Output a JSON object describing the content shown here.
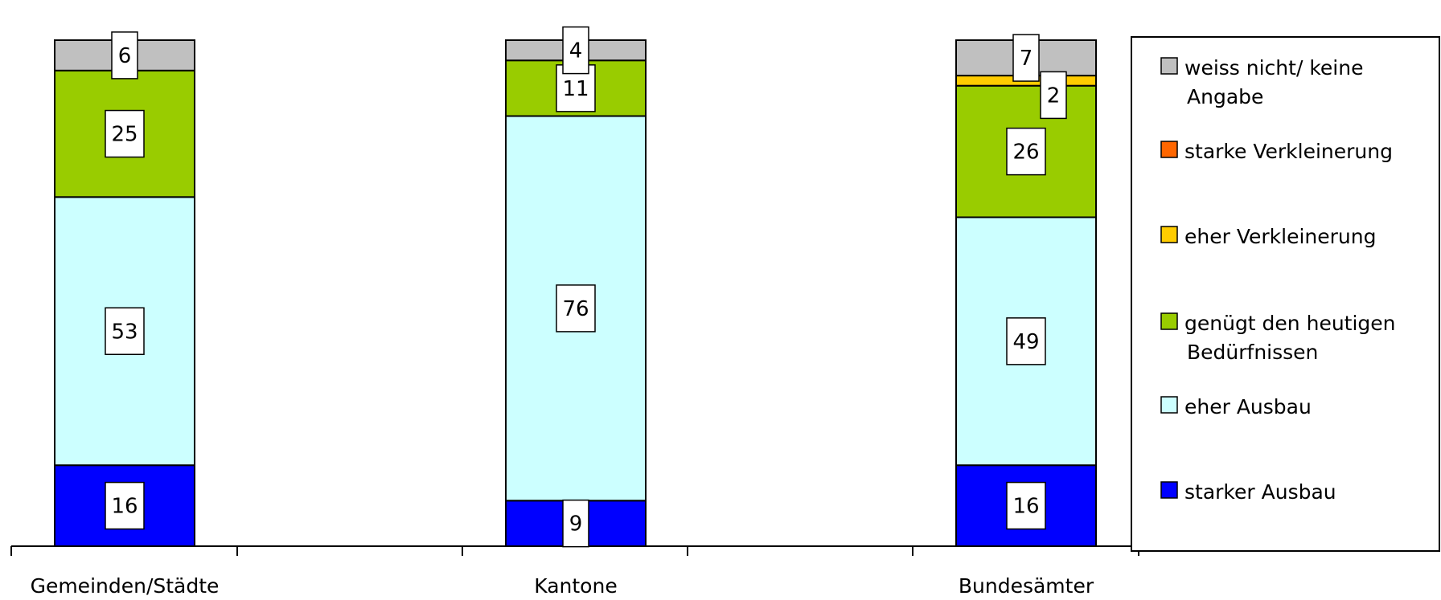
{
  "chart_data": {
    "type": "bar",
    "stacked": true,
    "categories": [
      "Gemeinden/Städte",
      "Kantone",
      "Bundesämter"
    ],
    "series": [
      {
        "name": "starker Ausbau",
        "color": "#0000FF",
        "values": [
          16,
          9,
          16
        ]
      },
      {
        "name": "eher Ausbau",
        "color": "#CCFFFF",
        "values": [
          53,
          76,
          49
        ]
      },
      {
        "name": "genügt den heutigen Bedürfnissen",
        "color": "#99CC00",
        "values": [
          25,
          11,
          26
        ]
      },
      {
        "name": "eher Verkleinerung",
        "color": "#FFCC00",
        "values": [
          0,
          0,
          2
        ]
      },
      {
        "name": "starke Verkleinerung",
        "color": "#FF6600",
        "values": [
          0,
          0,
          0
        ]
      },
      {
        "name": "weiss nicht/ keine Angabe",
        "color": "#C0C0C0",
        "values": [
          6,
          4,
          7
        ]
      }
    ],
    "legend_order": [
      [
        "weiss nicht/ keine",
        "Angabe"
      ],
      [
        "starke Verkleinerung"
      ],
      [
        "eher Verkleinerung"
      ],
      [
        "genügt den heutigen",
        "Bedürfnissen"
      ],
      [
        "eher Ausbau"
      ],
      [
        "starker Ausbau"
      ]
    ],
    "legend_series_index": [
      5,
      4,
      3,
      2,
      1,
      0
    ],
    "ylim": [
      0,
      100
    ],
    "grid": false,
    "legend_position": "right",
    "data_labels": true
  }
}
